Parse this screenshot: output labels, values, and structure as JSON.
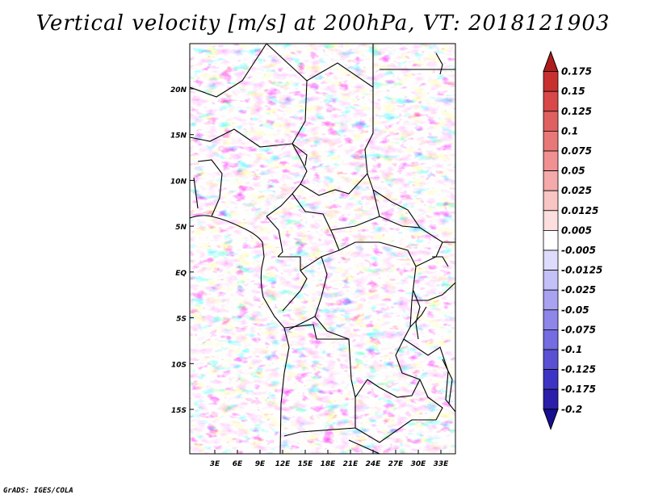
{
  "title": "Vertical velocity [m/s] at 200hPa, VT: 2018121903",
  "credit": "GrADS: IGES/COLA",
  "map": {
    "y_ticks": [
      {
        "label": "20N",
        "lat": 20
      },
      {
        "label": "15N",
        "lat": 15
      },
      {
        "label": "10N",
        "lat": 10
      },
      {
        "label": "5N",
        "lat": 5
      },
      {
        "label": "EQ",
        "lat": 0
      },
      {
        "label": "5S",
        "lat": -5
      },
      {
        "label": "10S",
        "lat": -10
      },
      {
        "label": "15S",
        "lat": -15
      }
    ],
    "x_ticks": [
      {
        "label": "3E",
        "lon": 3
      },
      {
        "label": "6E",
        "lon": 6
      },
      {
        "label": "9E",
        "lon": 9
      },
      {
        "label": "12E",
        "lon": 12
      },
      {
        "label": "15E",
        "lon": 15
      },
      {
        "label": "18E",
        "lon": 18
      },
      {
        "label": "21E",
        "lon": 21
      },
      {
        "label": "24E",
        "lon": 24
      },
      {
        "label": "27E",
        "lon": 27
      },
      {
        "label": "30E",
        "lon": 30
      },
      {
        "label": "33E",
        "lon": 33
      }
    ],
    "lon_range": [
      0,
      35
    ],
    "lat_range": [
      -20,
      25
    ]
  },
  "colorbar": {
    "levels": [
      "0.175",
      "0.15",
      "0.125",
      "0.1",
      "0.075",
      "0.05",
      "0.025",
      "0.0125",
      "0.005",
      "-0.005",
      "-0.0125",
      "-0.025",
      "-0.05",
      "-0.075",
      "-0.1",
      "-0.125",
      "-0.175",
      "-0.2"
    ],
    "colors": [
      "#b01c1c",
      "#c83030",
      "#d84848",
      "#e06060",
      "#e87878",
      "#f09090",
      "#f4aaaa",
      "#f8c4c4",
      "#fcdede",
      "#ffffff",
      "#dedcfc",
      "#c4c0f8",
      "#a8a2f0",
      "#8e86e8",
      "#746ce0",
      "#5a50d4",
      "#3e34c4",
      "#2a1eaa",
      "#180e90"
    ]
  },
  "colors": {
    "positive": "#e84848",
    "negative": "#4a40d8",
    "border": "#000000"
  }
}
